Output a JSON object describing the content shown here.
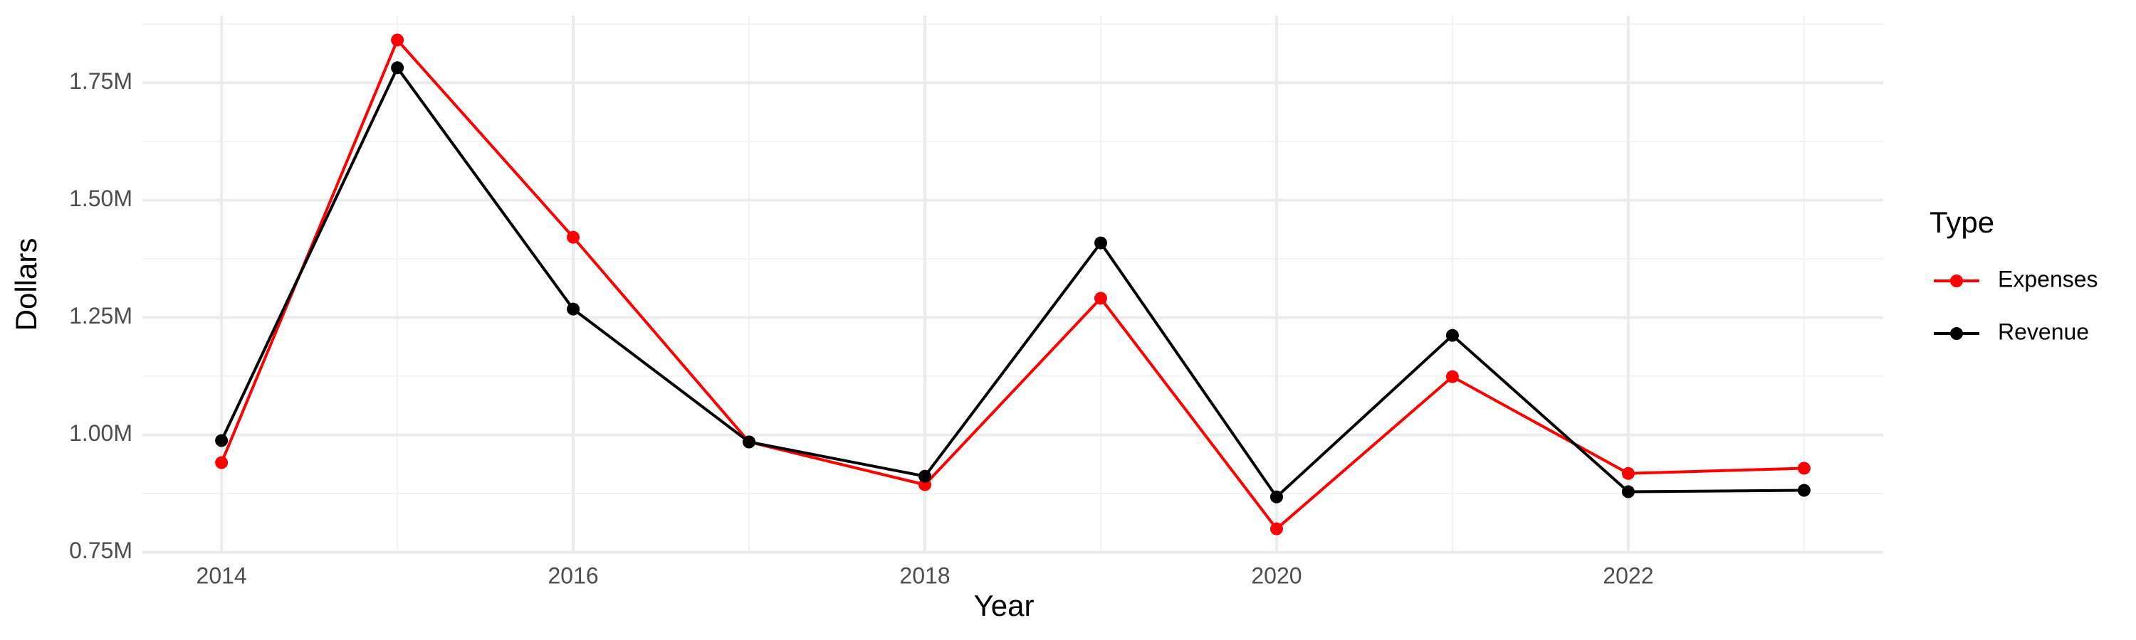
{
  "chart_data": {
    "type": "line",
    "x_label": "Year",
    "y_label": "Dollars",
    "legend_title": "Type",
    "x": [
      2014,
      2015,
      2016,
      2017,
      2018,
      2019,
      2020,
      2021,
      2022,
      2023
    ],
    "series": [
      {
        "name": "Expenses",
        "color": "#ff0000",
        "values": [
          941000,
          1841000,
          1421000,
          985000,
          894000,
          1291000,
          800000,
          1124000,
          918000,
          929000
        ]
      },
      {
        "name": "Revenue",
        "color": "#000000",
        "values": [
          988000,
          1782000,
          1268000,
          985000,
          912000,
          1409000,
          868000,
          1212000,
          879000,
          882000
        ]
      }
    ],
    "xlim": [
      2013.55,
      2023.45
    ],
    "xticks": [
      2014,
      2016,
      2018,
      2020,
      2022
    ],
    "x_minor_ticks": [
      2015,
      2017,
      2019,
      2021,
      2023
    ],
    "ylim": [
      748000,
      1893000
    ],
    "yticks": [
      {
        "value": 750000,
        "label": "0.75M"
      },
      {
        "value": 1000000,
        "label": "1.00M"
      },
      {
        "value": 1250000,
        "label": "1.25M"
      },
      {
        "value": 1500000,
        "label": "1.50M"
      },
      {
        "value": 1750000,
        "label": "1.75M"
      }
    ],
    "y_minor_ticks": [
      875000,
      1125000,
      1375000,
      1625000,
      1875000
    ],
    "grid": true,
    "legend_position": "right"
  }
}
